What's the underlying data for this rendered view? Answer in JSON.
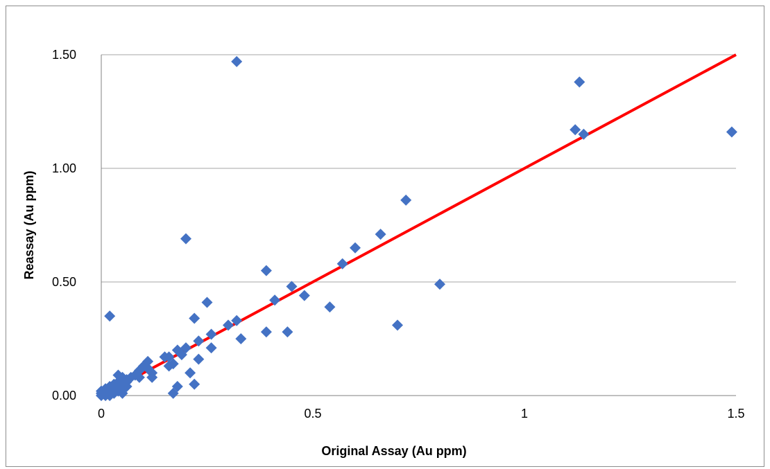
{
  "chart_data": {
    "type": "scatter",
    "title": "",
    "xlabel": "Original Assay (Au ppm)",
    "ylabel": "Reassay (Au ppm)",
    "xlim": [
      0,
      1.5
    ],
    "ylim": [
      0,
      1.5
    ],
    "x_ticks": [
      0,
      0.5,
      1,
      1.5
    ],
    "x_tick_labels": [
      "0",
      "0.5",
      "1",
      "1.5"
    ],
    "y_ticks": [
      0,
      0.5,
      1,
      1.5
    ],
    "y_tick_labels": [
      "0.00",
      "0.50",
      "1.00",
      "1.50"
    ],
    "grid": "horizontal",
    "legend": "none",
    "marker_color": "#4472C4",
    "reference_line": {
      "x": [
        0,
        1.5
      ],
      "y": [
        0,
        1.5
      ],
      "color": "#FF0000"
    },
    "points": [
      [
        0.32,
        1.47
      ],
      [
        1.13,
        1.38
      ],
      [
        1.12,
        1.17
      ],
      [
        1.14,
        1.15
      ],
      [
        1.49,
        1.16
      ],
      [
        0.72,
        0.86
      ],
      [
        0.66,
        0.71
      ],
      [
        0.2,
        0.69
      ],
      [
        0.6,
        0.65
      ],
      [
        0.57,
        0.58
      ],
      [
        0.39,
        0.55
      ],
      [
        0.8,
        0.49
      ],
      [
        0.45,
        0.48
      ],
      [
        0.48,
        0.44
      ],
      [
        0.41,
        0.42
      ],
      [
        0.25,
        0.41
      ],
      [
        0.54,
        0.39
      ],
      [
        0.02,
        0.35
      ],
      [
        0.22,
        0.34
      ],
      [
        0.32,
        0.33
      ],
      [
        0.7,
        0.31
      ],
      [
        0.3,
        0.31
      ],
      [
        0.39,
        0.28
      ],
      [
        0.44,
        0.28
      ],
      [
        0.26,
        0.27
      ],
      [
        0.33,
        0.25
      ],
      [
        0.23,
        0.24
      ],
      [
        0.26,
        0.21
      ],
      [
        0.2,
        0.21
      ],
      [
        0.18,
        0.2
      ],
      [
        0.19,
        0.18
      ],
      [
        0.16,
        0.17
      ],
      [
        0.15,
        0.17
      ],
      [
        0.17,
        0.14
      ],
      [
        0.16,
        0.13
      ],
      [
        0.23,
        0.16
      ],
      [
        0.21,
        0.1
      ],
      [
        0.22,
        0.05
      ],
      [
        0.18,
        0.04
      ],
      [
        0.17,
        0.01
      ],
      [
        0.11,
        0.15
      ],
      [
        0.1,
        0.13
      ],
      [
        0.11,
        0.12
      ],
      [
        0.09,
        0.11
      ],
      [
        0.12,
        0.1
      ],
      [
        0.08,
        0.09
      ],
      [
        0.12,
        0.08
      ],
      [
        0.04,
        0.09
      ],
      [
        0.07,
        0.08
      ],
      [
        0.09,
        0.08
      ],
      [
        0.05,
        0.08
      ],
      [
        0.06,
        0.07
      ],
      [
        0.06,
        0.06
      ],
      [
        0.04,
        0.06
      ],
      [
        0.05,
        0.05
      ],
      [
        0.03,
        0.05
      ],
      [
        0.02,
        0.04
      ],
      [
        0.04,
        0.04
      ],
      [
        0.05,
        0.03
      ],
      [
        0.03,
        0.03
      ],
      [
        0.02,
        0.02
      ],
      [
        0.05,
        0.01
      ],
      [
        0.01,
        0.03
      ],
      [
        0.0,
        0.02
      ],
      [
        0.01,
        0.01
      ],
      [
        0.0,
        0.0
      ],
      [
        0.02,
        0.0
      ],
      [
        0.03,
        0.01
      ],
      [
        0.01,
        0.0
      ],
      [
        0.0,
        0.01
      ],
      [
        0.04,
        0.02
      ],
      [
        0.06,
        0.04
      ],
      [
        0.03,
        0.02
      ],
      [
        0.02,
        0.01
      ],
      [
        0.01,
        0.02
      ]
    ]
  }
}
